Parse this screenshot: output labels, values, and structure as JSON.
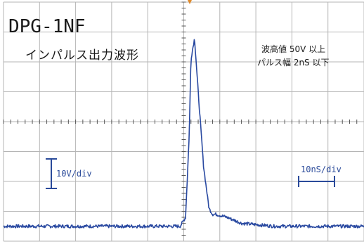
{
  "chart_data": {
    "type": "line",
    "title": "DPG-1NF",
    "subtitle": "インパルス出力波形",
    "annotations": [
      "波高値 50V 以上",
      "パルス幅 2nS 以下"
    ],
    "vertical_scale_label": "10V/div",
    "horizontal_scale_label": "10nS/div",
    "grid": true,
    "x_divisions": 10,
    "y_divisions": 8,
    "xlim": [
      0,
      100
    ],
    "ylim": [
      -5,
      75
    ],
    "xlabel": "",
    "ylabel": "",
    "series": [
      {
        "x": [
          0,
          20,
          40,
          49,
          50.5,
          51.5,
          52,
          53,
          54,
          55.5,
          57,
          58,
          59,
          62,
          66,
          75,
          85,
          100
        ],
        "y": [
          0,
          0,
          0,
          0,
          3,
          30,
          56,
          63,
          45,
          20,
          6,
          4,
          4,
          3,
          1,
          0,
          0,
          0
        ]
      }
    ],
    "colors": {
      "trace": "#2848a0",
      "grid": "#b5b5b5",
      "marker": "#e08a2a"
    }
  }
}
